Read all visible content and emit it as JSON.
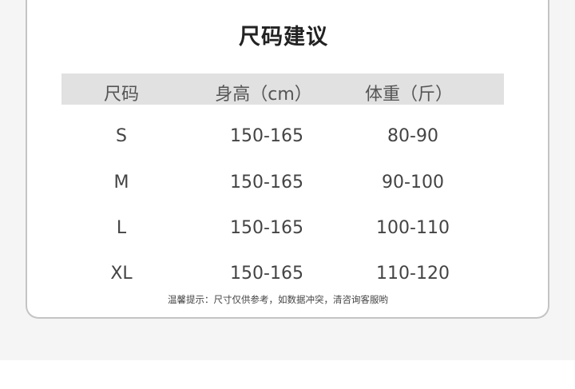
{
  "title": "尺码建议",
  "headers": [
    "尺码",
    "身高（cm）",
    "体重（斤）"
  ],
  "rows": [
    [
      "S",
      "150-165",
      "80-90"
    ],
    [
      "M",
      "150-165",
      "90-100"
    ],
    [
      "L",
      "150-165",
      "100-110"
    ],
    [
      "XL",
      "150-165",
      "110-120"
    ]
  ],
  "note": "温馨提示：尺寸仅供参考，如数据冲突，清咨询客服哟"
}
